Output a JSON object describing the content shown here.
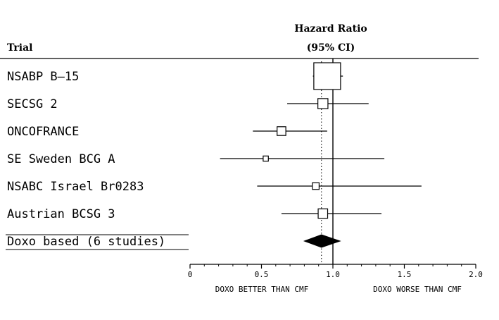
{
  "chart_data": {
    "type": "forest",
    "header": {
      "trial": "Trial",
      "hr_line1": "Hazard Ratio",
      "hr_line2": "(95% CI)"
    },
    "x_axis": {
      "range": [
        0,
        2.0
      ],
      "ticks": [
        0,
        0.5,
        1.0,
        1.5,
        2.0
      ],
      "tick_labels": [
        "0",
        "0.5",
        "1.0",
        "1.5",
        "2.0"
      ],
      "left_note": "DOXO BETTER THAN CMF",
      "right_note": "DOXO WORSE THAN CMF"
    },
    "reference_line": 1.0,
    "pooled_line": 0.92,
    "studies": [
      {
        "name": "NSABP B—15",
        "hr": 0.96,
        "lo": 0.86,
        "hi": 1.07,
        "weight": 1.0
      },
      {
        "name": "SECSG 2",
        "hr": 0.93,
        "lo": 0.68,
        "hi": 1.25,
        "weight": 0.45
      },
      {
        "name": "ONCOFRANCE",
        "hr": 0.64,
        "lo": 0.44,
        "hi": 0.96,
        "weight": 0.34
      },
      {
        "name": "SE Sweden BCG A",
        "hr": 0.53,
        "lo": 0.21,
        "hi": 1.36,
        "weight": 0.12
      },
      {
        "name": "NSABC Israel Br0283",
        "hr": 0.88,
        "lo": 0.47,
        "hi": 1.62,
        "weight": 0.2
      },
      {
        "name": "Austrian BCSG 3",
        "hr": 0.93,
        "lo": 0.64,
        "hi": 1.34,
        "weight": 0.4
      }
    ],
    "pooled": {
      "name": "Doxo based (6 studies)",
      "hr": 0.92,
      "lo": 0.8,
      "hi": 1.05
    }
  }
}
